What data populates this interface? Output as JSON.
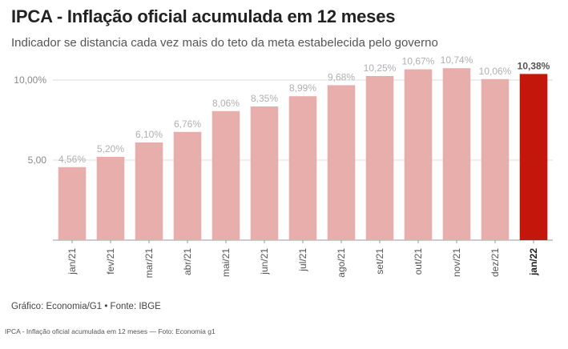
{
  "header": {
    "title": "IPCA - Inflação oficial acumulada em 12 meses",
    "subtitle": "Indicador se distancia cada vez mais do teto da meta estabelecida pelo governo"
  },
  "footer": {
    "source": "Gráfico: Economia/G1 • Fonte: IBGE",
    "caption": "IPCA - Inflação oficial acumulada em 12 meses — Foto: Economia g1"
  },
  "colors": {
    "bar": "#e8aeab",
    "highlight_bar": "#c4170c",
    "label": "#b0b0b0",
    "highlight_label": "#555555",
    "grid": "#dddddd"
  },
  "chart_data": {
    "type": "bar",
    "categories": [
      "jan/21",
      "fev/21",
      "mar/21",
      "abr/21",
      "mai/21",
      "jun/21",
      "jul/21",
      "ago/21",
      "set/21",
      "out/21",
      "nov/21",
      "dez/21",
      "jan/22"
    ],
    "values": [
      4.56,
      5.2,
      6.1,
      6.76,
      8.06,
      8.35,
      8.99,
      9.68,
      10.25,
      10.67,
      10.74,
      10.06,
      10.38
    ],
    "data_labels": [
      "4,56%",
      "5,20%",
      "6,10%",
      "6,76%",
      "8,06%",
      "8,35%",
      "8,99%",
      "9,68%",
      "10,25%",
      "10,67%",
      "10,74%",
      "10,06%",
      "10,38%"
    ],
    "highlight_index": 12,
    "y_ticks": [
      5,
      10
    ],
    "y_tick_labels": [
      "5,00",
      "10,00%"
    ],
    "ylim": [
      0,
      11.5
    ],
    "grid": true,
    "legend": "none"
  }
}
